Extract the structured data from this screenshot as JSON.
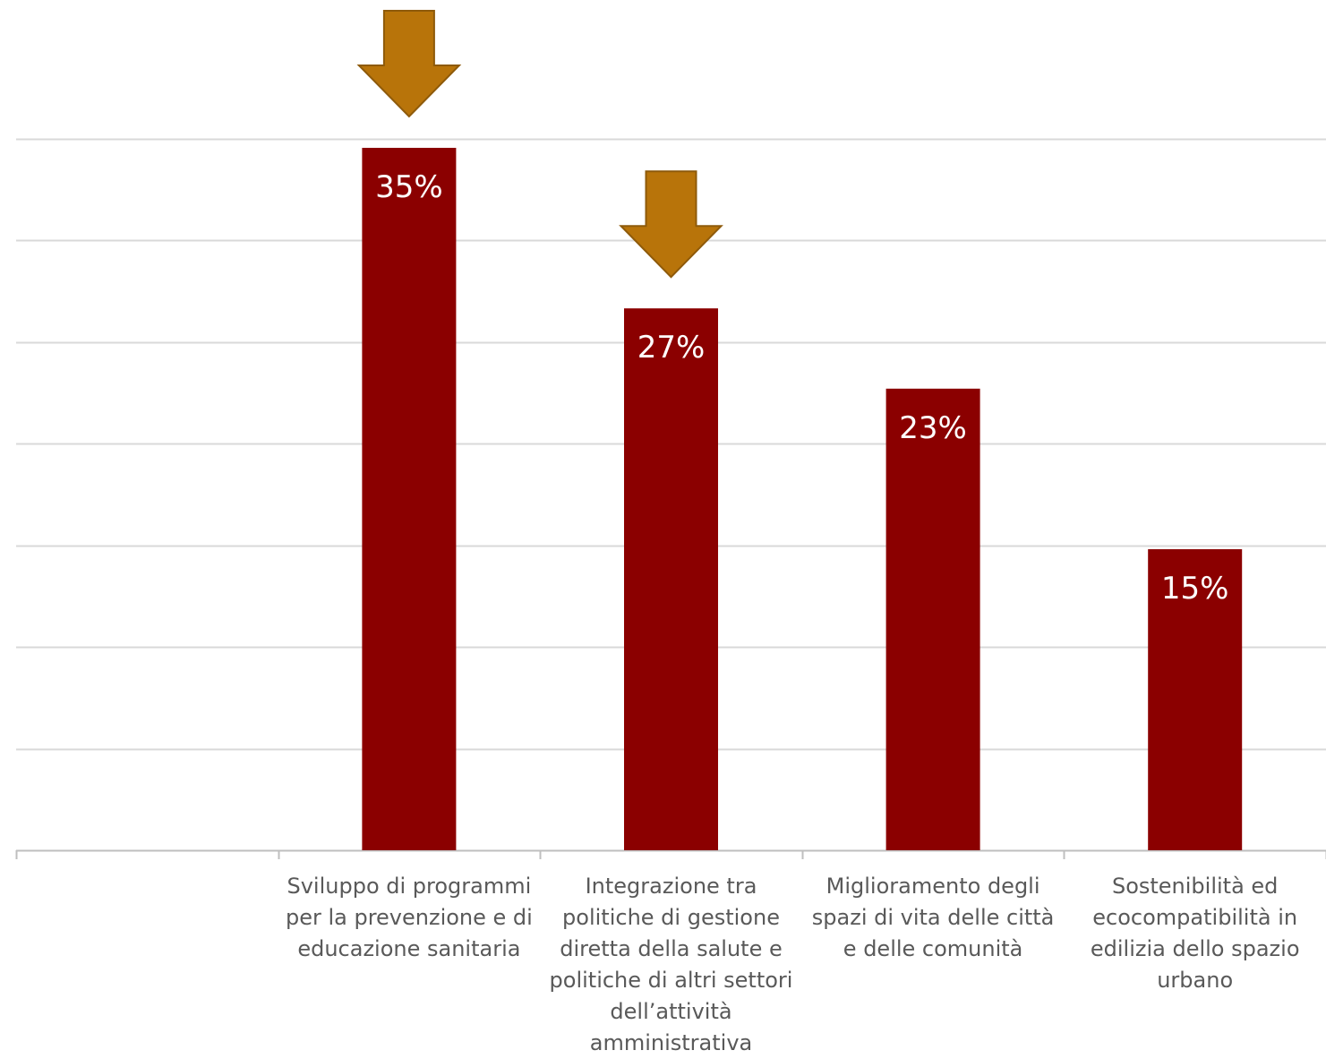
{
  "colors": {
    "bar": "#8b0000",
    "arrow": "#b8740a",
    "arrow_stroke": "#8e5a0a",
    "gridline": "#d9d9d9",
    "axis": "#bfbfbf",
    "label_text": "#595959"
  },
  "chart_data": {
    "type": "bar",
    "title": "",
    "xlabel": "",
    "ylabel": "",
    "categories": [
      "",
      "Sviluppo di programmi per la prevenzione e di educazione sanitaria",
      "Integrazione tra politiche di gestione diretta della salute e politiche di altri settori dell’attività amministrativa",
      "Miglioramento degli spazi di vita delle città e delle comunità",
      "Sostenibilità ed ecocompatibilità in edilizia dello spazio urbano"
    ],
    "values": [
      null,
      35,
      27,
      23,
      15
    ],
    "data_labels": [
      "",
      "35%",
      "27%",
      "23%",
      "15%"
    ],
    "highlighted_with_arrow": [
      "Sviluppo di programmi per la prevenzione e di educazione sanitaria",
      "Integrazione tra politiche di gestione diretta della salute e politiche di altri settori dell’attività amministrativa"
    ],
    "ylim": [
      0,
      35
    ],
    "gridlines": true,
    "y_tick_labels_visible": false,
    "legend": "none"
  }
}
